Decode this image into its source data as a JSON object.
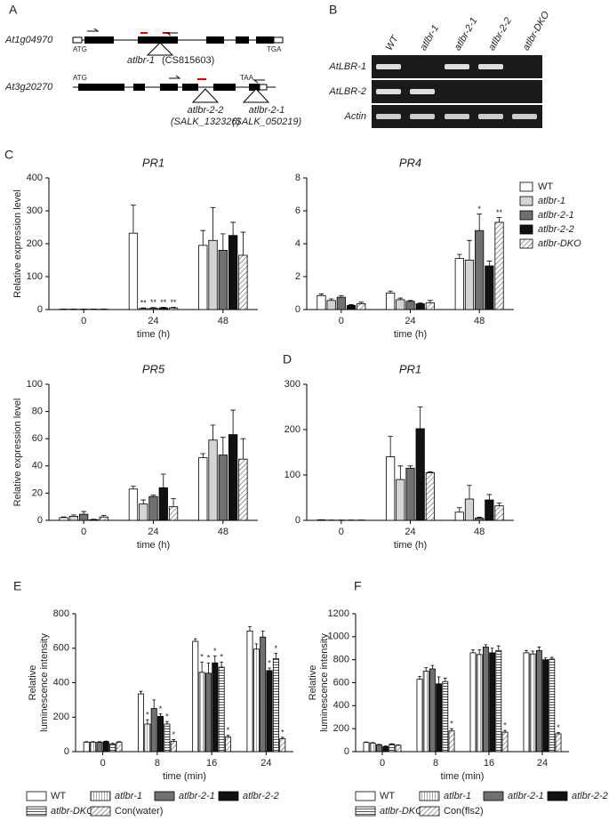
{
  "panel_a": {
    "label": "A",
    "genes": [
      {
        "name": "At1g04970",
        "start": "ATG",
        "end": "TGA",
        "allele": "atlbr-1",
        "line": "(CS815603)"
      },
      {
        "name": "At3g20270",
        "start": "ATG",
        "end": "TAA",
        "insertions": [
          {
            "allele": "atlbr-2-2",
            "line": "(SALK_132326)"
          },
          {
            "allele": "atlbr-2-1",
            "line": "(SALK_050219)"
          }
        ]
      }
    ]
  },
  "panel_b": {
    "label": "B",
    "lanes": [
      "WT",
      "atlbr-1",
      "atlbr-2-1",
      "atlbr-2-2",
      "atlbr-DKO"
    ],
    "rows": [
      "AtLBR-1",
      "AtLBR-2",
      "Actin"
    ]
  },
  "chart_data": [
    {
      "type": "bar",
      "panel": "C",
      "title": "PR1",
      "ylabel": "Relative expression level",
      "xlabel": "time (h)",
      "categories": [
        "0",
        "24",
        "48"
      ],
      "ylim": [
        0,
        400
      ],
      "yticks": [
        0,
        100,
        200,
        300,
        400
      ],
      "series": [
        {
          "color": "#ffffff",
          "values": [
            1,
            232,
            195
          ],
          "errors": [
            0.5,
            85,
            45
          ]
        },
        {
          "color": "#d4d4d4",
          "values": [
            1,
            3,
            210
          ],
          "errors": [
            0.5,
            2,
            100
          ],
          "annotations": [
            null,
            "**",
            null
          ]
        },
        {
          "color": "#707070",
          "values": [
            1,
            4,
            180
          ],
          "errors": [
            0.5,
            2,
            50
          ],
          "annotations": [
            null,
            "**",
            null
          ]
        },
        {
          "color": "#111111",
          "values": [
            1,
            5,
            225
          ],
          "errors": [
            0.5,
            2,
            40
          ],
          "annotations": [
            null,
            "**",
            null
          ]
        },
        {
          "color": "#ffffff",
          "pattern": "diagonal",
          "values": [
            1,
            5,
            165
          ],
          "errors": [
            0.5,
            2,
            70
          ],
          "annotations": [
            null,
            "**",
            null
          ]
        }
      ]
    },
    {
      "type": "bar",
      "title": "PR4",
      "xlabel": "time (h)",
      "categories": [
        "0",
        "24",
        "48"
      ],
      "ylim": [
        0,
        8
      ],
      "yticks": [
        0,
        2,
        4,
        6,
        8
      ],
      "legend": "right",
      "series": [
        {
          "name": "WT",
          "color": "#ffffff",
          "values": [
            0.85,
            1.0,
            3.1
          ],
          "errors": [
            0.1,
            0.12,
            0.25
          ]
        },
        {
          "name": "atlbr-1",
          "color": "#d4d4d4",
          "values": [
            0.55,
            0.6,
            3.0
          ],
          "errors": [
            0.1,
            0.1,
            1.2
          ]
        },
        {
          "name": "atlbr-2-1",
          "color": "#707070",
          "values": [
            0.75,
            0.5,
            4.8
          ],
          "errors": [
            0.1,
            0.05,
            1.0
          ],
          "annotations": [
            null,
            null,
            "*"
          ]
        },
        {
          "name": "atlbr-2-2",
          "color": "#111111",
          "values": [
            0.25,
            0.35,
            2.65
          ],
          "errors": [
            0.05,
            0.05,
            0.3
          ]
        },
        {
          "name": "atlbr-DKO",
          "color": "#ffffff",
          "pattern": "diagonal",
          "values": [
            0.35,
            0.4,
            5.3
          ],
          "errors": [
            0.1,
            0.15,
            0.3
          ],
          "annotations": [
            null,
            null,
            "**"
          ]
        }
      ]
    },
    {
      "type": "bar",
      "title": "PR5",
      "ylabel": "Relative expression level",
      "xlabel": "time (h)",
      "categories": [
        "0",
        "24",
        "48"
      ],
      "ylim": [
        0,
        100
      ],
      "yticks": [
        0,
        20,
        40,
        60,
        80,
        100
      ],
      "series": [
        {
          "color": "#ffffff",
          "values": [
            2,
            23,
            46
          ],
          "errors": [
            0.5,
            2,
            3
          ]
        },
        {
          "color": "#d4d4d4",
          "values": [
            3,
            12,
            59
          ],
          "errors": [
            1,
            3,
            11
          ]
        },
        {
          "color": "#707070",
          "values": [
            4.5,
            17.5,
            48
          ],
          "errors": [
            2,
            1,
            13
          ]
        },
        {
          "color": "#111111",
          "values": [
            0.5,
            24,
            63
          ],
          "errors": [
            0.3,
            10,
            18
          ]
        },
        {
          "color": "#ffffff",
          "pattern": "diagonal",
          "values": [
            2.5,
            10,
            45
          ],
          "errors": [
            1,
            6,
            15
          ]
        }
      ]
    },
    {
      "type": "bar",
      "panel": "D",
      "title": "PR1",
      "xlabel": "time (h)",
      "categories": [
        "0",
        "24",
        "48"
      ],
      "ylim": [
        0,
        300
      ],
      "yticks": [
        0,
        100,
        200,
        300
      ],
      "series": [
        {
          "color": "#ffffff",
          "values": [
            1,
            140,
            18
          ],
          "errors": [
            0.5,
            45,
            10
          ]
        },
        {
          "color": "#d4d4d4",
          "values": [
            0.5,
            90,
            47
          ],
          "errors": [
            0.3,
            30,
            30
          ]
        },
        {
          "color": "#707070",
          "values": [
            0.5,
            115,
            5
          ],
          "errors": [
            0.3,
            5,
            2
          ]
        },
        {
          "color": "#111111",
          "values": [
            0.5,
            202,
            45
          ],
          "errors": [
            0.3,
            48,
            12
          ]
        },
        {
          "color": "#ffffff",
          "pattern": "diagonal",
          "values": [
            0.5,
            105,
            32
          ],
          "errors": [
            0.3,
            2,
            6
          ]
        }
      ]
    },
    {
      "type": "bar",
      "panel": "E",
      "ylabel": [
        "Relative",
        "luminescence intensity"
      ],
      "xlabel": "time (min)",
      "categories": [
        "0",
        "8",
        "16",
        "24"
      ],
      "ylim": [
        0,
        800
      ],
      "yticks": [
        0,
        200,
        400,
        600,
        800
      ],
      "legend": "bottom",
      "series": [
        {
          "name": "WT",
          "color": "#ffffff",
          "values": [
            55,
            335,
            640,
            700
          ],
          "errors": [
            3,
            15,
            15,
            25
          ]
        },
        {
          "name": "atlbr-1",
          "color": "#ffffff",
          "pattern": "vertical",
          "values": [
            55,
            160,
            460,
            595
          ],
          "errors": [
            3,
            25,
            60,
            30
          ],
          "annotations": [
            null,
            "*",
            "*",
            null
          ]
        },
        {
          "name": "atlbr-2-1",
          "color": "#707070",
          "values": [
            55,
            250,
            455,
            665
          ],
          "errors": [
            3,
            50,
            60,
            35
          ],
          "annotations": [
            null,
            null,
            "*",
            null
          ]
        },
        {
          "name": "atlbr-2-2",
          "color": "#111111",
          "values": [
            58,
            205,
            515,
            470
          ],
          "errors": [
            3,
            15,
            40,
            15
          ],
          "annotations": [
            null,
            "*",
            "*",
            "*"
          ]
        },
        {
          "name": "atlbr-DKO",
          "color": "#ffffff",
          "pattern": "horizontal",
          "values": [
            45,
            160,
            490,
            540
          ],
          "errors": [
            3,
            15,
            30,
            30
          ],
          "annotations": [
            null,
            "*",
            "*",
            "*"
          ]
        },
        {
          "name": "Con(water)",
          "color": "#ffffff",
          "pattern": "diagonal",
          "values": [
            55,
            60,
            85,
            75
          ],
          "errors": [
            3,
            10,
            10,
            8
          ],
          "annotations": [
            null,
            "*",
            "*",
            "*"
          ]
        }
      ]
    },
    {
      "type": "bar",
      "panel": "F",
      "ylabel": [
        "Relative",
        "luminescence intensity"
      ],
      "xlabel": "time (min)",
      "categories": [
        "0",
        "8",
        "16",
        "24"
      ],
      "ylim": [
        0,
        1200
      ],
      "yticks": [
        0,
        200,
        400,
        600,
        800,
        1000,
        1200
      ],
      "legend": "bottom",
      "series": [
        {
          "name": "WT",
          "color": "#ffffff",
          "values": [
            80,
            630,
            860,
            860
          ],
          "errors": [
            4,
            25,
            25,
            20
          ]
        },
        {
          "name": "atlbr-1",
          "color": "#ffffff",
          "pattern": "vertical",
          "values": [
            75,
            700,
            845,
            850
          ],
          "errors": [
            4,
            30,
            40,
            25
          ]
        },
        {
          "name": "atlbr-2-1",
          "color": "#707070",
          "values": [
            60,
            720,
            910,
            880
          ],
          "errors": [
            4,
            30,
            20,
            30
          ]
        },
        {
          "name": "atlbr-2-2",
          "color": "#111111",
          "values": [
            45,
            590,
            860,
            800
          ],
          "errors": [
            4,
            60,
            40,
            15
          ]
        },
        {
          "name": "atlbr-DKO",
          "color": "#ffffff",
          "pattern": "horizontal",
          "values": [
            65,
            610,
            880,
            805
          ],
          "errors": [
            4,
            30,
            40,
            15
          ]
        },
        {
          "name": "Con(fls2)",
          "color": "#ffffff",
          "pattern": "diagonal",
          "values": [
            55,
            180,
            170,
            155
          ],
          "errors": [
            4,
            20,
            15,
            10
          ],
          "annotations": [
            null,
            "*",
            "*",
            "*"
          ]
        }
      ]
    }
  ]
}
